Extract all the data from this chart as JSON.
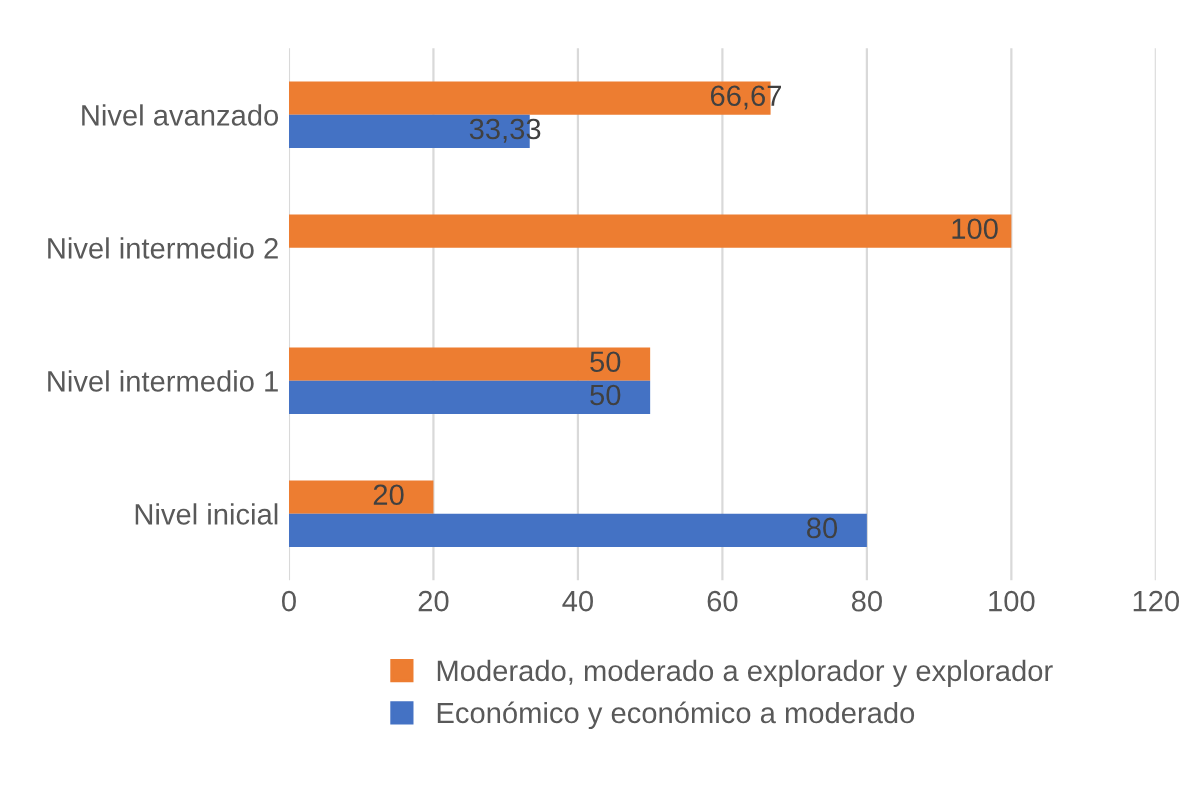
{
  "chart_data": {
    "type": "bar",
    "orientation": "horizontal",
    "categories": [
      "Nivel avanzado",
      "Nivel intermedio 2",
      "Nivel intermedio 1",
      "Nivel inicial"
    ],
    "series": [
      {
        "name": "Moderado, moderado a explorador y explorador",
        "color": "#ed7d31",
        "values": [
          66.67,
          100,
          50,
          20
        ],
        "value_labels": [
          "66,67",
          "100",
          "50",
          "20"
        ]
      },
      {
        "name": "Económico y económico a moderado",
        "color": "#4472c4",
        "values": [
          33.33,
          null,
          50,
          80
        ],
        "value_labels": [
          "33,33",
          null,
          "50",
          "80"
        ]
      }
    ],
    "xlim": [
      0,
      120
    ],
    "xticks": [
      0,
      20,
      40,
      60,
      80,
      100,
      120
    ],
    "grid": "x",
    "legend": "bottom"
  }
}
